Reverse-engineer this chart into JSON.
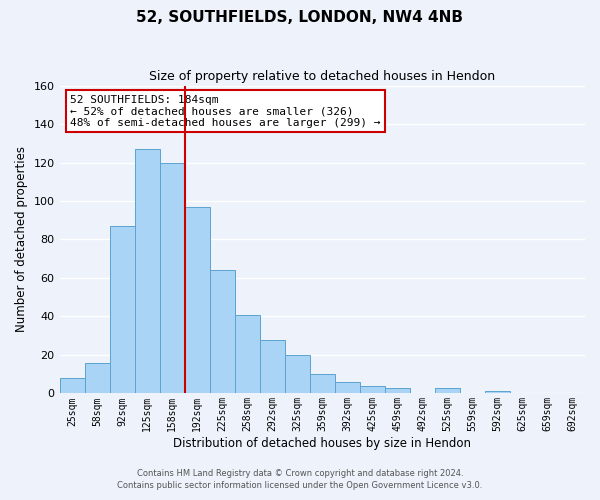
{
  "title": "52, SOUTHFIELDS, LONDON, NW4 4NB",
  "subtitle": "Size of property relative to detached houses in Hendon",
  "xlabel": "Distribution of detached houses by size in Hendon",
  "ylabel": "Number of detached properties",
  "bar_labels": [
    "25sqm",
    "58sqm",
    "92sqm",
    "125sqm",
    "158sqm",
    "192sqm",
    "225sqm",
    "258sqm",
    "292sqm",
    "325sqm",
    "359sqm",
    "392sqm",
    "425sqm",
    "459sqm",
    "492sqm",
    "525sqm",
    "559sqm",
    "592sqm",
    "625sqm",
    "659sqm",
    "692sqm"
  ],
  "bar_values": [
    8,
    16,
    87,
    127,
    120,
    97,
    64,
    41,
    28,
    20,
    10,
    6,
    4,
    3,
    0,
    3,
    0,
    1,
    0,
    0,
    0
  ],
  "bar_color": "#aad4f5",
  "bar_edge_color": "#5ba3d0",
  "vline_color": "#cc0000",
  "vline_x_index": 5,
  "annotation_text": "52 SOUTHFIELDS: 184sqm\n← 52% of detached houses are smaller (326)\n48% of semi-detached houses are larger (299) →",
  "annotation_box_color": "white",
  "annotation_box_edge": "#cc0000",
  "ylim": [
    0,
    160
  ],
  "yticks": [
    0,
    20,
    40,
    60,
    80,
    100,
    120,
    140,
    160
  ],
  "footer1": "Contains HM Land Registry data © Crown copyright and database right 2024.",
  "footer2": "Contains public sector information licensed under the Open Government Licence v3.0.",
  "background_color": "#edf2fb",
  "grid_color": "white"
}
